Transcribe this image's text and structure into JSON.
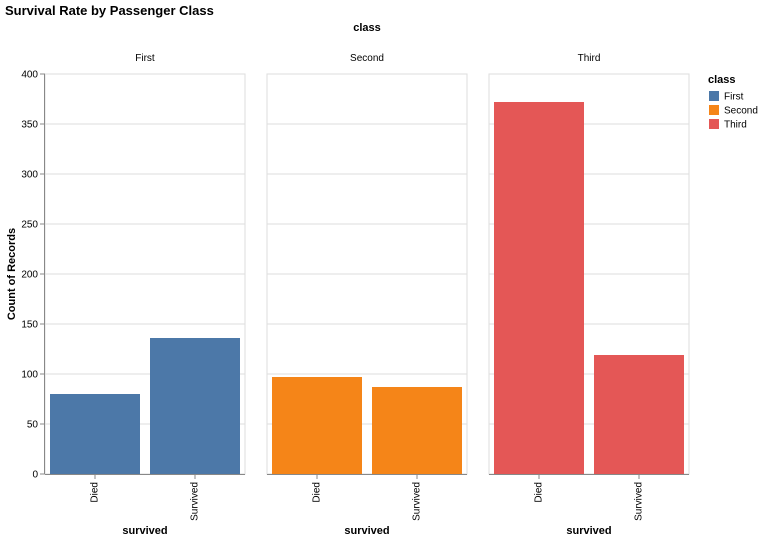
{
  "chart_data": {
    "type": "bar",
    "title": "Survival Rate by Passenger Class",
    "facet_header": "class",
    "facets": [
      "First",
      "Second",
      "Third"
    ],
    "categories": [
      "Died",
      "Survived"
    ],
    "xlabel": "survived",
    "ylabel": "Count of Records",
    "ylim": [
      0,
      400
    ],
    "yticks": [
      0,
      50,
      100,
      150,
      200,
      250,
      300,
      350,
      400
    ],
    "grid": true,
    "series": [
      {
        "name": "First",
        "color": "#4c78a8",
        "values": [
          80,
          136
        ]
      },
      {
        "name": "Second",
        "color": "#f58518",
        "values": [
          97,
          87
        ]
      },
      {
        "name": "Third",
        "color": "#e45756",
        "values": [
          372,
          119
        ]
      }
    ],
    "legend": {
      "title": "class",
      "position": "top-right",
      "entries": [
        "First",
        "Second",
        "Third"
      ]
    }
  }
}
